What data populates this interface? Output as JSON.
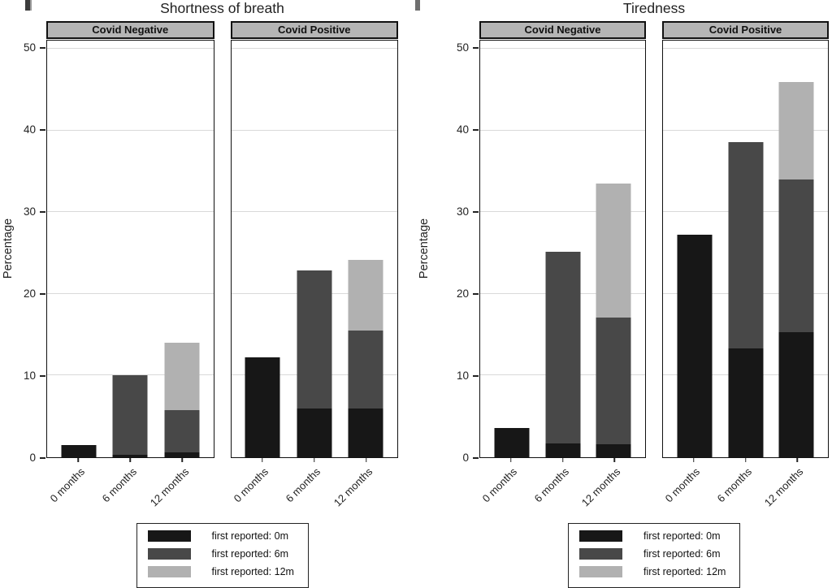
{
  "colors": {
    "black": "#171717",
    "dark_gray": "#484848",
    "light_gray": "#b1b1b1",
    "panel_header_bg": "#b5b5b5",
    "gridline": "#d9d9d9",
    "border": "#111111"
  },
  "legend": {
    "items": [
      {
        "key": "black",
        "label": "first reported: 0m"
      },
      {
        "key": "dark_gray",
        "label": "first reported: 6m"
      },
      {
        "key": "light_gray",
        "label": "first reported: 12m"
      }
    ]
  },
  "chart_data": [
    {
      "type": "bar",
      "stacked": true,
      "title": "Shortness of breath",
      "xlabel": "",
      "ylabel": "Percentage",
      "ylim": [
        0,
        51
      ],
      "yticks": [
        0,
        10,
        20,
        30,
        40,
        50
      ],
      "grid": true,
      "legend_position": "bottom",
      "categories": [
        "0 months",
        "6 months",
        "12 months"
      ],
      "panels": [
        {
          "label": "Covid Negative",
          "series": [
            {
              "name": "first reported: 0m",
              "values": [
                1.5,
                0.3,
                0.6
              ]
            },
            {
              "name": "first reported: 6m",
              "values": [
                0,
                9.7,
                5.2
              ]
            },
            {
              "name": "first reported: 12m",
              "values": [
                0,
                0,
                8.2
              ]
            }
          ],
          "totals": [
            1.5,
            10.0,
            14.0
          ]
        },
        {
          "label": "Covid Positive",
          "series": [
            {
              "name": "first reported: 0m",
              "values": [
                12.2,
                6.0,
                6.0
              ]
            },
            {
              "name": "first reported: 6m",
              "values": [
                0,
                16.9,
                9.5
              ]
            },
            {
              "name": "first reported: 12m",
              "values": [
                0,
                0,
                8.7
              ]
            }
          ],
          "totals": [
            12.2,
            22.9,
            24.2
          ]
        }
      ]
    },
    {
      "type": "bar",
      "stacked": true,
      "title": "Tiredness",
      "xlabel": "",
      "ylabel": "Percentage",
      "ylim": [
        0,
        51
      ],
      "yticks": [
        0,
        10,
        20,
        30,
        40,
        50
      ],
      "grid": true,
      "legend_position": "bottom",
      "categories": [
        "0 months",
        "6 months",
        "12 months"
      ],
      "panels": [
        {
          "label": "Covid Negative",
          "series": [
            {
              "name": "first reported: 0m",
              "values": [
                3.6,
                1.7,
                1.6
              ]
            },
            {
              "name": "first reported: 6m",
              "values": [
                0,
                23.5,
                15.5
              ]
            },
            {
              "name": "first reported: 12m",
              "values": [
                0,
                0,
                16.4
              ]
            }
          ],
          "totals": [
            3.6,
            25.2,
            33.5
          ]
        },
        {
          "label": "Covid Positive",
          "series": [
            {
              "name": "first reported: 0m",
              "values": [
                27.2,
                13.3,
                15.3
              ]
            },
            {
              "name": "first reported: 6m",
              "values": [
                0,
                25.3,
                18.7
              ]
            },
            {
              "name": "first reported: 12m",
              "values": [
                0,
                0,
                11.9
              ]
            }
          ],
          "totals": [
            27.2,
            38.6,
            45.9
          ]
        }
      ]
    }
  ]
}
